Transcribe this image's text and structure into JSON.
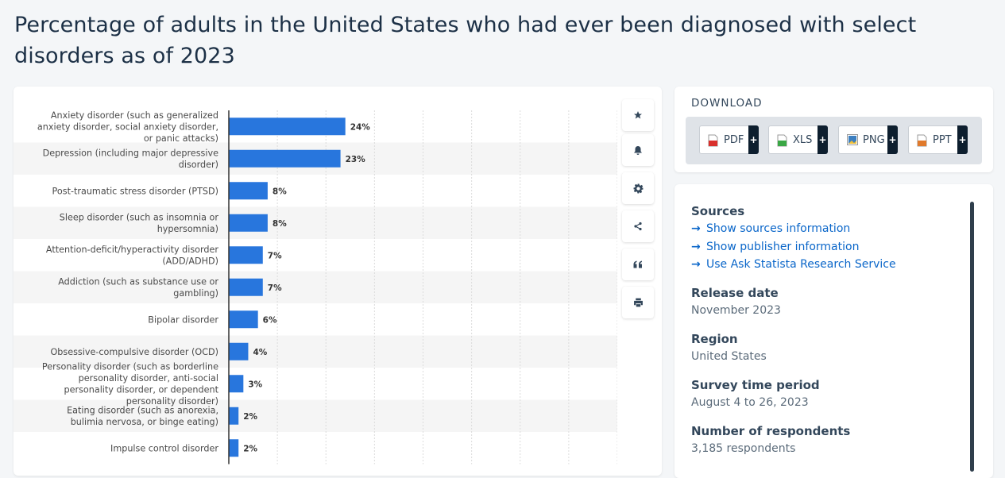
{
  "page": {
    "title": "Percentage of adults in the United States who had ever been diagnosed with select disorders as of 2023"
  },
  "chart_data": {
    "type": "bar",
    "orientation": "horizontal",
    "title": "Percentage of adults in the United States who had ever been diagnosed with select disorders as of 2023",
    "categories": [
      "Anxiety disorder (such as generalized anxiety disorder, social anxiety disorder, or panic attacks)",
      "Depression (including major depressive disorder)",
      "Post-traumatic stress disorder (PTSD)",
      "Sleep disorder (such as insomnia or hypersomnia)",
      "Attention-deficit/hyperactivity disorder (ADD/ADHD)",
      "Addiction (such as substance use or gambling)",
      "Bipolar disorder",
      "Obsessive-compulsive disorder (OCD)",
      "Personality disorder (such as borderline personality disorder, anti-social personality disorder, or dependent personality disorder)",
      "Eating disorder (such as anorexia, bulimia nervosa, or binge eating)",
      "Impulse control disorder"
    ],
    "category_lines": [
      [
        "Anxiety disorder (such as generalized",
        "anxiety disorder, social anxiety disorder,",
        "or panic attacks)"
      ],
      [
        "Depression (including major depressive",
        "disorder)"
      ],
      [
        "Post-traumatic stress disorder (PTSD)"
      ],
      [
        "Sleep disorder (such as insomnia or",
        "hypersomnia)"
      ],
      [
        "Attention-deficit/hyperactivity disorder",
        "(ADD/ADHD)"
      ],
      [
        "Addiction (such as substance use or",
        "gambling)"
      ],
      [
        "Bipolar disorder"
      ],
      [
        "Obsessive-compulsive disorder (OCD)"
      ],
      [
        "Personality disorder (such as borderline",
        "personality disorder, anti-social",
        "personality disorder, or dependent",
        "personality disorder)"
      ],
      [
        "Eating disorder (such as anorexia,",
        "bulimia nervosa, or binge eating)"
      ],
      [
        "Impulse control disorder"
      ]
    ],
    "values": [
      24,
      23,
      8,
      8,
      7,
      7,
      6,
      4,
      3,
      2,
      2
    ],
    "value_labels": [
      "24%",
      "23%",
      "8%",
      "8%",
      "7%",
      "7%",
      "6%",
      "4%",
      "3%",
      "2%",
      "2%"
    ],
    "unit": "%",
    "xlim": [
      0,
      80
    ],
    "grid": true,
    "bar_color": "#2876dd"
  },
  "toolbar": {
    "buttons": [
      {
        "name": "favorite-button",
        "icon": "star-icon"
      },
      {
        "name": "notification-button",
        "icon": "bell-icon"
      },
      {
        "name": "settings-button",
        "icon": "gear-icon"
      },
      {
        "name": "share-button",
        "icon": "share-icon"
      },
      {
        "name": "cite-button",
        "icon": "quote-icon"
      },
      {
        "name": "print-button",
        "icon": "printer-icon"
      }
    ]
  },
  "download": {
    "title": "DOWNLOAD",
    "plus": "+",
    "buttons": [
      {
        "label": "PDF",
        "icon": "pdf-file-icon",
        "color": "#d9302c"
      },
      {
        "label": "XLS",
        "icon": "xls-file-icon",
        "color": "#3aa745"
      },
      {
        "label": "PNG",
        "icon": "png-file-icon",
        "color": "#3c7fc0"
      },
      {
        "label": "PPT",
        "icon": "ppt-file-icon",
        "color": "#e07a2c"
      }
    ]
  },
  "info": {
    "sources_heading": "Sources",
    "links": [
      "Show sources information",
      "Show publisher information",
      "Use Ask Statista Research Service"
    ],
    "release_heading": "Release date",
    "release_value": "November 2023",
    "region_heading": "Region",
    "region_value": "United States",
    "period_heading": "Survey time period",
    "period_value": "August 4 to 26, 2023",
    "respondents_heading": "Number of respondents",
    "respondents_value": "3,185 respondents"
  }
}
